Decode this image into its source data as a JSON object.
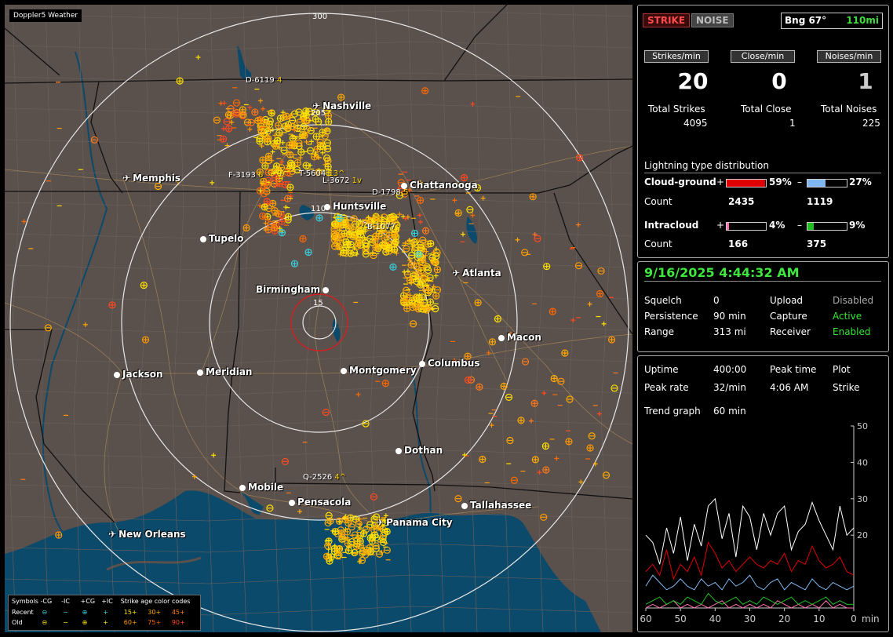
{
  "app_title": "Doppler5 Weather",
  "map": {
    "colors": {
      "land": "#5a504c",
      "water": "#0c4a6b",
      "rings": "#e8e8e8",
      "state_lines": "#111111",
      "county_lines": "#7d6f69",
      "roads": "#a08256",
      "close_ring": "#d42020"
    },
    "rings": [
      {
        "label": "300"
      },
      {
        "label": "205"
      },
      {
        "label": "110"
      },
      {
        "label": "15"
      }
    ],
    "cities": [
      {
        "name": "Nashville",
        "icon": "plane-icon"
      },
      {
        "name": "Memphis",
        "icon": "plane-icon"
      },
      {
        "name": "Chattanooga",
        "icon": "dot-icon"
      },
      {
        "name": "Huntsville",
        "icon": "dot-icon"
      },
      {
        "name": "Tupelo",
        "icon": "dot-icon"
      },
      {
        "name": "Atlanta",
        "icon": "plane-icon"
      },
      {
        "name": "Birmingham",
        "icon": "dot-icon"
      },
      {
        "name": "Macon",
        "icon": "dot-icon"
      },
      {
        "name": "Jackson",
        "icon": "dot-icon"
      },
      {
        "name": "Meridian",
        "icon": "dot-icon"
      },
      {
        "name": "Montgomery",
        "icon": "dot-icon"
      },
      {
        "name": "Columbus",
        "icon": "dot-icon"
      },
      {
        "name": "Dothan",
        "icon": "dot-icon"
      },
      {
        "name": "Mobile",
        "icon": "dot-icon"
      },
      {
        "name": "Pensacola",
        "icon": "dot-icon"
      },
      {
        "name": "Panama City",
        "icon": "plane-icon"
      },
      {
        "name": "Tallahassee",
        "icon": "dot-icon"
      },
      {
        "name": "New Orleans",
        "icon": "plane-icon"
      }
    ],
    "cells": [
      {
        "id": "D-6119",
        "tail": "4"
      },
      {
        "id": "F-3193",
        "tail": "6"
      },
      {
        "id": "T-5604",
        "tail": "13^"
      },
      {
        "id": "L-3672",
        "tail": "1v"
      },
      {
        "id": "D-1798",
        "tail": "5"
      },
      {
        "id": "B-1077",
        "tail": ""
      },
      {
        "id": "Q-2526",
        "tail": "4^"
      }
    ],
    "legend": {
      "header": [
        "Symbols",
        "-CG",
        "-IC",
        "+CG",
        "+IC",
        "Strike age color codes"
      ],
      "recent": {
        "label": "Recent",
        "ages": [
          "15+",
          "30+",
          "45+"
        ]
      },
      "old": {
        "label": "Old",
        "ages": [
          "60+",
          "75+",
          "90+"
        ]
      },
      "age_colors": [
        "#ffe000",
        "#ffaa00",
        "#ff7a1a",
        "#ff9a00",
        "#ff6a00",
        "#ff4a20"
      ]
    }
  },
  "status": {
    "strike_label": "STRIKE",
    "noise_label": "NOISE",
    "bearing": "Bng 67°",
    "distance": "110mi",
    "rates": [
      {
        "label": "Strikes/min",
        "value": "20"
      },
      {
        "label": "Close/min",
        "value": "0"
      },
      {
        "label": "Noises/min",
        "value": "1"
      }
    ],
    "totals": [
      {
        "label": "Total Strikes",
        "value": "4095"
      },
      {
        "label": "Total Close",
        "value": "1"
      },
      {
        "label": "Total Noises",
        "value": "225"
      }
    ],
    "distribution": {
      "title": "Lightning type distribution",
      "cloud_ground": {
        "label": "Cloud-ground",
        "pos_pct": "59%",
        "neg_pct": "27%",
        "pos": 0.59,
        "neg": 0.27,
        "pos_count": "2435",
        "neg_count": "1119",
        "pos_color": "#e00000",
        "neg_color": "#7fb8f0"
      },
      "intracloud": {
        "label": "Intracloud",
        "pos_pct": "4%",
        "neg_pct": "9%",
        "pos": 0.04,
        "neg": 0.09,
        "pos_count": "166",
        "neg_count": "375",
        "pos_color": "#ff6fb0",
        "neg_color": "#20c020"
      },
      "count_label": "Count",
      "plus": "+",
      "minus": "–"
    }
  },
  "receiver": {
    "datetime": "9/16/2025 4:44:32 AM",
    "rows": [
      {
        "label": "Squelch",
        "value": "0",
        "label2": "Upload",
        "value2": "Disabled",
        "value2_status": "off"
      },
      {
        "label": "Persistence",
        "value": "90 min",
        "label2": "Capture",
        "value2": "Active",
        "value2_status": "on"
      },
      {
        "label": "Range",
        "value": "313 mi",
        "label2": "Receiver",
        "value2": "Enabled",
        "value2_status": "on"
      }
    ]
  },
  "stats": {
    "uptime_label": "Uptime",
    "uptime": "400:00",
    "peak_time_label": "Peak time",
    "peak_time": "4:06 AM",
    "plot_label": "Plot",
    "plot": "Strike",
    "peak_rate_label": "Peak rate",
    "peak_rate": "32/min",
    "trend_label": "Trend graph",
    "trend": "60 min"
  },
  "chart_data": {
    "type": "line",
    "title": "",
    "xlabel": "min",
    "ylabel": "",
    "x_ticks": [
      "60",
      "50",
      "40",
      "30",
      "20",
      "10",
      "0"
    ],
    "y_ticks": [
      "50",
      "40",
      "30",
      "20"
    ],
    "ylim": [
      0,
      50
    ],
    "xlim": [
      60,
      0
    ],
    "x": [
      60,
      58,
      56,
      54,
      52,
      50,
      48,
      46,
      44,
      42,
      40,
      38,
      36,
      34,
      32,
      30,
      28,
      26,
      24,
      22,
      20,
      18,
      16,
      14,
      12,
      10,
      8,
      6,
      4,
      2,
      0
    ],
    "series": [
      {
        "color": "#ffffff",
        "values": [
          20,
          18,
          12,
          22,
          15,
          25,
          13,
          23,
          17,
          28,
          30,
          19,
          26,
          14,
          28,
          25,
          16,
          26,
          20,
          26,
          28,
          16,
          21,
          23,
          29,
          24,
          20,
          16,
          28,
          20,
          22
        ]
      },
      {
        "color": "#e00000",
        "values": [
          10,
          12,
          9,
          16,
          8,
          12,
          10,
          14,
          9,
          18,
          15,
          11,
          13,
          10,
          12,
          14,
          12,
          11,
          13,
          12,
          15,
          10,
          13,
          12,
          17,
          13,
          11,
          12,
          14,
          10,
          9
        ]
      },
      {
        "color": "#7fb8f0",
        "values": [
          6,
          9,
          7,
          5,
          6,
          8,
          6,
          5,
          8,
          6,
          7,
          5,
          8,
          6,
          7,
          9,
          6,
          5,
          7,
          8,
          5,
          7,
          6,
          5,
          8,
          6,
          5,
          7,
          6,
          5,
          6
        ]
      },
      {
        "color": "#20c020",
        "values": [
          1,
          2,
          3,
          1,
          2,
          1,
          3,
          2,
          1,
          4,
          2,
          1,
          2,
          3,
          1,
          2,
          1,
          3,
          2,
          1,
          2,
          3,
          1,
          2,
          1,
          2,
          3,
          1,
          2,
          1,
          1
        ]
      },
      {
        "color": "#ff6fb0",
        "values": [
          0,
          1,
          0,
          1,
          2,
          0,
          1,
          0,
          1,
          0,
          1,
          2,
          0,
          1,
          0,
          1,
          0,
          1,
          0,
          2,
          1,
          0,
          1,
          0,
          1,
          0,
          2,
          0,
          1,
          0,
          0
        ]
      }
    ]
  }
}
